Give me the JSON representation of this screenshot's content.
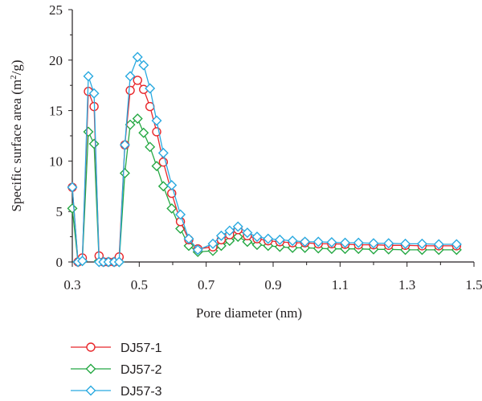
{
  "chart_data": {
    "type": "line",
    "xlabel": "Pore diameter (nm)",
    "ylabel_main": "Specific surface area (m",
    "ylabel_sup": "2",
    "ylabel_tail": "/g)",
    "xlim": [
      0.3,
      1.5
    ],
    "ylim": [
      0,
      25
    ],
    "xticks": [
      0.3,
      0.5,
      0.7,
      0.9,
      1.1,
      1.3,
      1.5
    ],
    "xtick_labels": [
      "0.3",
      "0.5",
      "0.7",
      "0.9",
      "1.1",
      "1.3",
      "1.5"
    ],
    "yticks": [
      0,
      5,
      10,
      15,
      20,
      25
    ],
    "ytick_labels": [
      "0",
      "5",
      "10",
      "15",
      "20",
      "25"
    ],
    "grid": false,
    "legend_position": "bottom-left, below plot",
    "series": [
      {
        "name": "DJ57-1",
        "color": "#e8262a",
        "marker": "circle",
        "x": [
          0.3,
          0.317,
          0.33,
          0.348,
          0.365,
          0.38,
          0.393,
          0.408,
          0.425,
          0.44,
          0.457,
          0.473,
          0.495,
          0.513,
          0.532,
          0.552,
          0.572,
          0.597,
          0.623,
          0.648,
          0.675,
          0.72,
          0.745,
          0.77,
          0.795,
          0.823,
          0.852,
          0.885,
          0.92,
          0.958,
          0.995,
          1.035,
          1.075,
          1.115,
          1.155,
          1.2,
          1.245,
          1.295,
          1.345,
          1.395,
          1.448
        ],
        "y": [
          7.4,
          0.0,
          0.4,
          16.9,
          15.4,
          0.6,
          0.0,
          0.0,
          0.0,
          0.5,
          11.6,
          17.0,
          18.0,
          17.1,
          15.4,
          12.9,
          9.9,
          6.8,
          4.0,
          2.2,
          1.3,
          1.5,
          2.2,
          2.7,
          3.2,
          2.6,
          2.3,
          2.1,
          2.0,
          1.9,
          1.9,
          1.8,
          1.8,
          1.75,
          1.7,
          1.7,
          1.65,
          1.65,
          1.6,
          1.6,
          1.6
        ]
      },
      {
        "name": "DJ57-2",
        "color": "#25a843",
        "marker": "diamond",
        "x": [
          0.3,
          0.317,
          0.33,
          0.348,
          0.365,
          0.38,
          0.393,
          0.408,
          0.425,
          0.44,
          0.457,
          0.473,
          0.495,
          0.513,
          0.532,
          0.552,
          0.572,
          0.597,
          0.623,
          0.648,
          0.675,
          0.72,
          0.745,
          0.77,
          0.795,
          0.823,
          0.852,
          0.885,
          0.92,
          0.958,
          0.995,
          1.035,
          1.075,
          1.115,
          1.155,
          1.2,
          1.245,
          1.295,
          1.345,
          1.395,
          1.448
        ],
        "y": [
          5.3,
          0.0,
          0.1,
          12.9,
          11.7,
          0.1,
          0.0,
          0.0,
          0.0,
          0.0,
          8.8,
          13.6,
          14.2,
          12.8,
          11.4,
          9.5,
          7.5,
          5.3,
          3.3,
          1.6,
          1.0,
          1.1,
          1.6,
          2.1,
          2.5,
          2.0,
          1.7,
          1.6,
          1.5,
          1.4,
          1.4,
          1.35,
          1.3,
          1.3,
          1.3,
          1.25,
          1.25,
          1.2,
          1.2,
          1.2,
          1.2
        ]
      },
      {
        "name": "DJ57-3",
        "color": "#29a9e0",
        "marker": "diamond",
        "x": [
          0.3,
          0.317,
          0.33,
          0.348,
          0.365,
          0.38,
          0.393,
          0.408,
          0.425,
          0.44,
          0.457,
          0.473,
          0.495,
          0.513,
          0.532,
          0.552,
          0.572,
          0.597,
          0.623,
          0.648,
          0.675,
          0.72,
          0.745,
          0.77,
          0.795,
          0.823,
          0.852,
          0.885,
          0.92,
          0.958,
          0.995,
          1.035,
          1.075,
          1.115,
          1.155,
          1.2,
          1.245,
          1.295,
          1.345,
          1.395,
          1.448
        ],
        "y": [
          7.4,
          0.0,
          0.1,
          18.4,
          16.7,
          0.0,
          0.0,
          0.0,
          0.0,
          0.0,
          11.6,
          18.4,
          20.3,
          19.5,
          17.2,
          14.0,
          10.8,
          7.6,
          4.7,
          2.3,
          1.2,
          1.8,
          2.6,
          3.1,
          3.5,
          2.9,
          2.5,
          2.3,
          2.2,
          2.1,
          2.0,
          2.0,
          1.95,
          1.9,
          1.9,
          1.85,
          1.85,
          1.8,
          1.8,
          1.75,
          1.75
        ]
      }
    ]
  }
}
